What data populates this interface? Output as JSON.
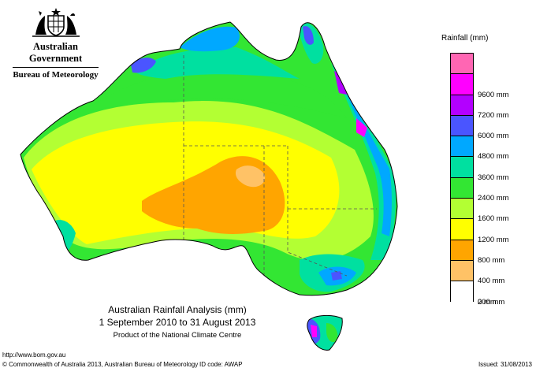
{
  "logo": {
    "government": "Australian Government",
    "bureau": "Bureau of Meteorology"
  },
  "legend": {
    "title": "Rainfall (mm)",
    "items": [
      {
        "label": "",
        "color": "#ff66b3"
      },
      {
        "label": "9600 mm",
        "color": "#ff00ff"
      },
      {
        "label": "7200 mm",
        "color": "#b300ff"
      },
      {
        "label": "6000 mm",
        "color": "#4a55ff"
      },
      {
        "label": "4800 mm",
        "color": "#00a8ff"
      },
      {
        "label": "3600 mm",
        "color": "#00e0a0"
      },
      {
        "label": "2400 mm",
        "color": "#33e633"
      },
      {
        "label": "1600 mm",
        "color": "#b3ff33"
      },
      {
        "label": "1200 mm",
        "color": "#ffff00"
      },
      {
        "label": "800 mm",
        "color": "#ffa500"
      },
      {
        "label": "400 mm",
        "color": "#ffc266"
      },
      {
        "label": "200 mm",
        "color": "#ffffff"
      },
      {
        "label": "0 mm",
        "color": null
      }
    ]
  },
  "title": {
    "line1": "Australian Rainfall Analysis (mm)",
    "line2": "1 September 2010 to 31 August 2013",
    "line3": "Product of the National Climate Centre"
  },
  "footer": {
    "url": "http://www.bom.gov.au",
    "copyright": "© Commonwealth of Australia 2013, Australian Bureau of Meteorology",
    "id_code": "ID code: AWAP",
    "issued": "Issued: 31/08/2013"
  }
}
